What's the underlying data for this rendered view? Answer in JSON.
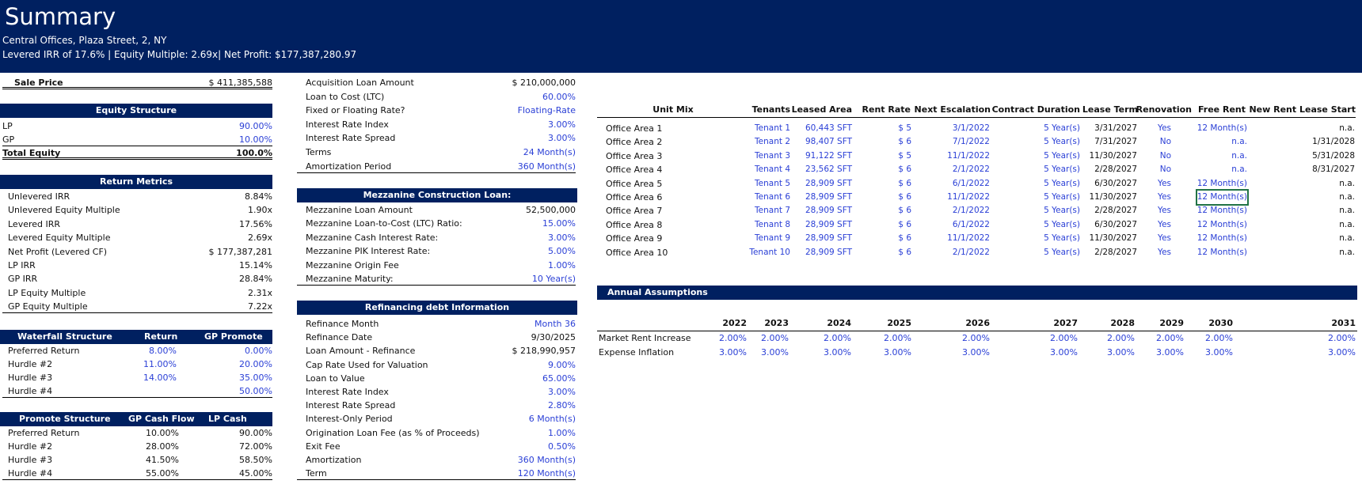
{
  "header": {
    "title": "Summary",
    "subtitle": "Central Offices, Plaza Street, 2, NY",
    "metrics_line": "Levered IRR of 17.6% | Equity Multiple: 2.69x| Net Profit: $177,387,280.97"
  },
  "sale": {
    "label": "Sale Price",
    "value": "$ 411,385,588"
  },
  "equity": {
    "title": "Equity Structure",
    "rows": [
      {
        "label": "LP",
        "value": "90.00%"
      },
      {
        "label": "GP",
        "value": "10.00%"
      }
    ],
    "total_label": "Total Equity",
    "total_value": "100.0%"
  },
  "returns": {
    "title": "Return Metrics",
    "rows": [
      {
        "label": "Unlevered IRR",
        "value": "8.84%"
      },
      {
        "label": "Unlevered Equity Multiple",
        "value": "1.90x"
      },
      {
        "label": "Levered IRR",
        "value": "17.56%"
      },
      {
        "label": "Levered Equity Multiple",
        "value": "2.69x"
      },
      {
        "label": "Net Profit (Levered CF)",
        "value": "$ 177,387,281"
      },
      {
        "label": "LP IRR",
        "value": "15.14%"
      },
      {
        "label": "GP  IRR",
        "value": "28.84%"
      },
      {
        "label": "LP Equity Multiple",
        "value": "2.31x"
      },
      {
        "label": "GP Equity Multiple",
        "value": "7.22x"
      }
    ]
  },
  "waterfall": {
    "headers": [
      "Waterfall Structure",
      "Return",
      "GP Promote"
    ],
    "rows": [
      {
        "label": "Preferred Return",
        "ret": "8.00%",
        "promo": "0.00%"
      },
      {
        "label": "Hurdle #2",
        "ret": "11.00%",
        "promo": "20.00%"
      },
      {
        "label": "Hurdle #3",
        "ret": "14.00%",
        "promo": "35.00%"
      },
      {
        "label": "Hurdle #4",
        "ret": "",
        "promo": "50.00%"
      }
    ]
  },
  "promote": {
    "headers": [
      "Promote Structure",
      "GP Cash Flow",
      "LP Cash Flow"
    ],
    "rows": [
      {
        "label": "Preferred Return",
        "gp": "10.00%",
        "lp": "90.00%"
      },
      {
        "label": "Hurdle #2",
        "gp": "28.00%",
        "lp": "72.00%"
      },
      {
        "label": "Hurdle #3",
        "gp": "41.50%",
        "lp": "58.50%"
      },
      {
        "label": "Hurdle #4",
        "gp": "55.00%",
        "lp": "45.00%"
      }
    ]
  },
  "acq": {
    "rows": [
      {
        "label": "Acquisition Loan Amount",
        "value": "$ 210,000,000",
        "blue": false
      },
      {
        "label": "Loan to Cost (LTC)",
        "value": "60.00%",
        "blue": true
      },
      {
        "label": "Fixed or Floating Rate?",
        "value": "Floating-Rate",
        "blue": true
      },
      {
        "label": "Interest Rate Index",
        "value": "3.00%",
        "blue": true
      },
      {
        "label": "Interest Rate Spread",
        "value": "3.00%",
        "blue": true
      },
      {
        "label": "Terms",
        "value": "24 Month(s)",
        "blue": true
      },
      {
        "label": "Amortization Period",
        "value": "360 Month(s)",
        "blue": true
      }
    ]
  },
  "mezz": {
    "title": "Mezzanine Construction Loan:",
    "rows": [
      {
        "label": "Mezzanine Loan Amount",
        "value": "52,500,000",
        "blue": false
      },
      {
        "label": "Mezzanine Loan-to-Cost (LTC) Ratio:",
        "value": "15.00%",
        "blue": true
      },
      {
        "label": "Mezzanine Cash Interest Rate:",
        "value": "3.00%",
        "blue": true
      },
      {
        "label": "Mezzanine PIK Interest Rate:",
        "value": "5.00%",
        "blue": true
      },
      {
        "label": "Mezzanine Origin Fee",
        "value": "1.00%",
        "blue": true
      },
      {
        "label": "Mezzanine Maturity:",
        "value": "10 Year(s)",
        "blue": true
      }
    ]
  },
  "refi": {
    "title": "Refinancing debt Information",
    "rows": [
      {
        "label": "Refinance Month",
        "value": "Month 36",
        "blue": true
      },
      {
        "label": "Refinance Date",
        "value": "9/30/2025",
        "blue": false
      },
      {
        "label": "Loan Amount - Refinance",
        "value": "$ 218,990,957",
        "blue": false
      },
      {
        "label": "Cap Rate Used for Valuation",
        "value": "9.00%",
        "blue": true
      },
      {
        "label": "Loan to Value",
        "value": "65.00%",
        "blue": true
      },
      {
        "label": "Interest Rate Index",
        "value": "3.00%",
        "blue": true
      },
      {
        "label": "Interest Rate Spread",
        "value": "2.80%",
        "blue": true
      },
      {
        "label": "Interest-Only Period",
        "value": "6 Month(s)",
        "blue": true
      },
      {
        "label": "Origination Loan Fee (as % of Proceeds)",
        "value": "1.00%",
        "blue": true
      },
      {
        "label": "Exit Fee",
        "value": "0.50%",
        "blue": true
      },
      {
        "label": "Amortization",
        "value": "360 Month(s)",
        "blue": true
      },
      {
        "label": "Term",
        "value": "120 Month(s)",
        "blue": true
      }
    ]
  },
  "unitmix": {
    "headers": [
      "Unit Mix",
      "Tenants",
      "Leased Area",
      "Rent Rate",
      "Next Escalation",
      "Contract Duration",
      "Lease Term",
      "Renovation",
      "Free Rent",
      "New Rent Lease Start"
    ],
    "rows": [
      {
        "unit": "Office Area 1",
        "tenant": "Tenant 1",
        "area": "60,443 SFT",
        "rate": "$ 5",
        "esc": "3/1/2022",
        "dur": "5 Year(s)",
        "term": "3/31/2027",
        "reno": "Yes",
        "free": "12 Month(s)",
        "start": "n.a."
      },
      {
        "unit": "Office Area 2",
        "tenant": "Tenant 2",
        "area": "98,407 SFT",
        "rate": "$ 6",
        "esc": "7/1/2022",
        "dur": "5 Year(s)",
        "term": "7/31/2027",
        "reno": "No",
        "free": "n.a.",
        "start": "1/31/2028"
      },
      {
        "unit": "Office Area 3",
        "tenant": "Tenant 3",
        "area": "91,122 SFT",
        "rate": "$ 5",
        "esc": "11/1/2022",
        "dur": "5 Year(s)",
        "term": "11/30/2027",
        "reno": "No",
        "free": "n.a.",
        "start": "5/31/2028"
      },
      {
        "unit": "Office Area 4",
        "tenant": "Tenant 4",
        "area": "23,562 SFT",
        "rate": "$ 6",
        "esc": "2/1/2022",
        "dur": "5 Year(s)",
        "term": "2/28/2027",
        "reno": "No",
        "free": "n.a.",
        "start": "8/31/2027"
      },
      {
        "unit": "Office Area 5",
        "tenant": "Tenant 5",
        "area": "28,909 SFT",
        "rate": "$ 6",
        "esc": "6/1/2022",
        "dur": "5 Year(s)",
        "term": "6/30/2027",
        "reno": "Yes",
        "free": "12 Month(s)",
        "start": "n.a."
      },
      {
        "unit": "Office Area 6",
        "tenant": "Tenant 6",
        "area": "28,909 SFT",
        "rate": "$ 6",
        "esc": "11/1/2022",
        "dur": "5 Year(s)",
        "term": "11/30/2027",
        "reno": "Yes",
        "free": "12 Month(s)",
        "start": "n.a."
      },
      {
        "unit": "Office Area 7",
        "tenant": "Tenant 7",
        "area": "28,909 SFT",
        "rate": "$ 6",
        "esc": "2/1/2022",
        "dur": "5 Year(s)",
        "term": "2/28/2027",
        "reno": "Yes",
        "free": "12 Month(s)",
        "start": "n.a."
      },
      {
        "unit": "Office Area 8",
        "tenant": "Tenant 8",
        "area": "28,909 SFT",
        "rate": "$ 6",
        "esc": "6/1/2022",
        "dur": "5 Year(s)",
        "term": "6/30/2027",
        "reno": "Yes",
        "free": "12 Month(s)",
        "start": "n.a."
      },
      {
        "unit": "Office Area 9",
        "tenant": "Tenant 9",
        "area": "28,909 SFT",
        "rate": "$ 6",
        "esc": "11/1/2022",
        "dur": "5 Year(s)",
        "term": "11/30/2027",
        "reno": "Yes",
        "free": "12 Month(s)",
        "start": "n.a."
      },
      {
        "unit": "Office Area 10",
        "tenant": "Tenant 10",
        "area": "28,909 SFT",
        "rate": "$ 6",
        "esc": "2/1/2022",
        "dur": "5 Year(s)",
        "term": "2/28/2027",
        "reno": "Yes",
        "free": "12 Month(s)",
        "start": "n.a."
      }
    ]
  },
  "annual": {
    "title": "Annual Assumptions",
    "years": [
      "2022",
      "2023",
      "2024",
      "2025",
      "2026",
      "2027",
      "2028",
      "2029",
      "2030",
      "2031"
    ],
    "rows": [
      {
        "label": "Market Rent Increase",
        "values": [
          "2.00%",
          "2.00%",
          "2.00%",
          "2.00%",
          "2.00%",
          "2.00%",
          "2.00%",
          "2.00%",
          "2.00%",
          "2.00%"
        ]
      },
      {
        "label": "Expense Inflation",
        "values": [
          "3.00%",
          "3.00%",
          "3.00%",
          "3.00%",
          "3.00%",
          "3.00%",
          "3.00%",
          "3.00%",
          "3.00%",
          "3.00%"
        ]
      }
    ]
  }
}
